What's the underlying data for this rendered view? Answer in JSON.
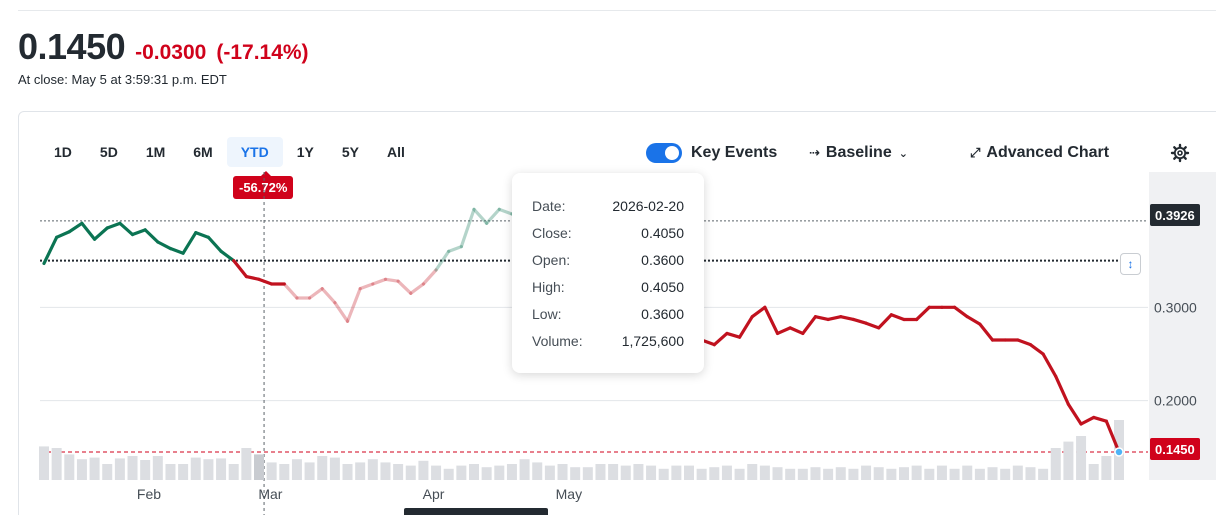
{
  "quote": {
    "price": "0.1450",
    "change": "-0.0300",
    "change_pct": "(-17.14%)",
    "close_time": "At close: May 5 at 3:59:31 p.m. EDT"
  },
  "ranges": [
    "1D",
    "5D",
    "1M",
    "6M",
    "YTD",
    "1Y",
    "5Y",
    "All"
  ],
  "active_range": "YTD",
  "range_badge": "-56.72%",
  "toolbar": {
    "key_events_label": "Key Events",
    "key_events_on": true,
    "chart_type_label": "Baseline",
    "advanced_label": "Advanced Chart",
    "settings_icon": "gear-icon"
  },
  "colors": {
    "up": "#0b7453",
    "down": "#c1121f",
    "accent": "#1a73e8",
    "negative": "#d0021b"
  },
  "tooltip": {
    "rows": [
      {
        "label": "Date:",
        "value": "2026-02-20"
      },
      {
        "label": "Close:",
        "value": "0.4050"
      },
      {
        "label": "Open:",
        "value": "0.3600"
      },
      {
        "label": "High:",
        "value": "0.4050"
      },
      {
        "label": "Low:",
        "value": "0.3600"
      },
      {
        "label": "Volume:",
        "value": "1,725,600"
      }
    ]
  },
  "tags": {
    "crosshair_price": "0.3926",
    "last_price": "0.1450"
  },
  "chart_data": {
    "type": "line",
    "baseline": 0.35,
    "ylim": [
      0.115,
      0.445
    ],
    "y_ticks": [
      0.3,
      0.2
    ],
    "y_tick_labels": [
      "0.3000",
      "0.2000"
    ],
    "x_ticks": [
      "Feb",
      "Mar",
      "Apr",
      "May"
    ],
    "x_tick_positions": [
      8.3,
      17.9,
      30.8,
      41.5
    ],
    "hover_index": 17.4,
    "crosshair_value": 0.3926,
    "last_value": 0.145,
    "series": [
      {
        "values": [
          0.347,
          0.375,
          0.381,
          0.39,
          0.373,
          0.385,
          0.39,
          0.378,
          0.383,
          0.37,
          0.363,
          0.358,
          0.38,
          0.375,
          0.36,
          0.35,
          0.333,
          0.33,
          0.325,
          0.325,
          0.31,
          0.31,
          0.32,
          0.305,
          0.285,
          0.32,
          0.325,
          0.33,
          0.328,
          0.315,
          0.325,
          0.34,
          0.36,
          0.365,
          0.405,
          0.39,
          0.405,
          0.4,
          0.396,
          0.39,
          0.37,
          0.355,
          0.343,
          0.33,
          0.325,
          0.33,
          0.325,
          0.325,
          0.315,
          0.3,
          0.3,
          0.275,
          0.265,
          0.26,
          0.272,
          0.268,
          0.29,
          0.3,
          0.272,
          0.278,
          0.272,
          0.29,
          0.287,
          0.29,
          0.287,
          0.283,
          0.278,
          0.292,
          0.287,
          0.287,
          0.3,
          0.3,
          0.3,
          0.29,
          0.282,
          0.265,
          0.265,
          0.265,
          0.26,
          0.25,
          0.226,
          0.196,
          0.175,
          0.182,
          0.178,
          0.145
        ]
      }
    ],
    "volume": [
      0.42,
      0.4,
      0.32,
      0.26,
      0.28,
      0.2,
      0.27,
      0.3,
      0.25,
      0.3,
      0.2,
      0.2,
      0.28,
      0.26,
      0.27,
      0.2,
      0.4,
      0.32,
      0.22,
      0.2,
      0.26,
      0.22,
      0.3,
      0.28,
      0.2,
      0.22,
      0.26,
      0.22,
      0.2,
      0.18,
      0.24,
      0.18,
      0.14,
      0.18,
      0.2,
      0.16,
      0.18,
      0.2,
      0.26,
      0.22,
      0.18,
      0.2,
      0.16,
      0.16,
      0.2,
      0.2,
      0.18,
      0.2,
      0.18,
      0.14,
      0.18,
      0.18,
      0.14,
      0.16,
      0.18,
      0.14,
      0.2,
      0.18,
      0.16,
      0.14,
      0.14,
      0.16,
      0.14,
      0.16,
      0.14,
      0.18,
      0.16,
      0.14,
      0.16,
      0.18,
      0.14,
      0.18,
      0.14,
      0.18,
      0.14,
      0.16,
      0.14,
      0.18,
      0.16,
      0.14,
      0.4,
      0.48,
      0.55,
      0.2,
      0.3,
      0.75
    ],
    "volume_highlight_index": 17
  }
}
